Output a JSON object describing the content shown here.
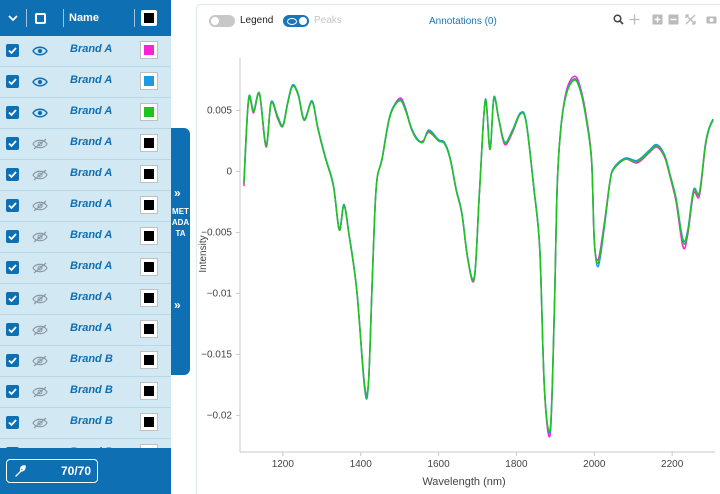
{
  "sidebar": {
    "header": {
      "name_label": "Name"
    },
    "rows": [
      {
        "name": "Brand A",
        "visible": true,
        "color": "#ff21d8"
      },
      {
        "name": "Brand A",
        "visible": true,
        "color": "#1f9ae0"
      },
      {
        "name": "Brand A",
        "visible": true,
        "color": "#1ec51e"
      },
      {
        "name": "Brand A",
        "visible": false,
        "color": "#000000"
      },
      {
        "name": "Brand A",
        "visible": false,
        "color": "#000000"
      },
      {
        "name": "Brand A",
        "visible": false,
        "color": "#000000"
      },
      {
        "name": "Brand A",
        "visible": false,
        "color": "#000000"
      },
      {
        "name": "Brand A",
        "visible": false,
        "color": "#000000"
      },
      {
        "name": "Brand A",
        "visible": false,
        "color": "#000000"
      },
      {
        "name": "Brand A",
        "visible": false,
        "color": "#000000"
      },
      {
        "name": "Brand B",
        "visible": false,
        "color": "#000000"
      },
      {
        "name": "Brand B",
        "visible": false,
        "color": "#000000"
      },
      {
        "name": "Brand B",
        "visible": false,
        "color": "#000000"
      },
      {
        "name": "Brand B",
        "visible": false,
        "color": "#000000"
      }
    ],
    "footer": {
      "count": "70/70"
    },
    "metadata_tab": "METADATA"
  },
  "toolbar": {
    "legend_label": "Legend",
    "peaks_label": "Peaks",
    "annotations_label": "Annotations (0)",
    "modebar": [
      "zoom-icon",
      "pan-icon",
      "zoom-in-icon",
      "zoom-out-icon",
      "autoscale-icon",
      "camera-icon"
    ]
  },
  "chart_data": {
    "type": "line",
    "xlabel": "Wavelength (nm)",
    "ylabel": "Intensity",
    "xlim": [
      1090,
      2310
    ],
    "ylim": [
      -0.023,
      0.0093
    ],
    "xticks": [
      1200,
      1400,
      1600,
      1800,
      2000,
      2200
    ],
    "yticks": [
      0.005,
      0,
      -0.005,
      -0.01,
      -0.015,
      -0.02
    ],
    "ytick_labels": [
      "0.005",
      "0",
      "−0.005",
      "−0.01",
      "−0.015",
      "−0.02"
    ],
    "grid": false,
    "series": [
      {
        "color": "#ff21d8",
        "x": [
          1100,
          1112,
          1125,
          1140,
          1157,
          1170,
          1187,
          1200,
          1212,
          1225,
          1240,
          1255,
          1275,
          1290,
          1310,
          1330,
          1345,
          1357,
          1370,
          1390,
          1410,
          1420,
          1430,
          1440,
          1455,
          1475,
          1500,
          1515,
          1530,
          1545,
          1560,
          1575,
          1600,
          1615,
          1630,
          1645,
          1660,
          1675,
          1692,
          1705,
          1720,
          1732,
          1742,
          1755,
          1770,
          1790,
          1810,
          1825,
          1845,
          1860,
          1872,
          1887,
          1897,
          1905,
          1915,
          1930,
          1950,
          1965,
          1980,
          1993,
          2000,
          2010,
          2025,
          2040,
          2050,
          2080,
          2110,
          2140,
          2160,
          2180,
          2195,
          2210,
          2228,
          2240,
          2255,
          2270,
          2285,
          2295,
          2305
        ],
        "y": [
          -0.0012,
          0.0058,
          0.0048,
          0.0063,
          0.002,
          0.0056,
          0.0043,
          0.0037,
          0.0055,
          0.007,
          0.0062,
          0.0042,
          0.0057,
          0.0035,
          0.001,
          -0.0012,
          -0.0048,
          -0.0028,
          -0.0052,
          -0.0098,
          -0.0175,
          -0.0172,
          -0.0085,
          -0.0012,
          0.001,
          0.0045,
          0.006,
          0.0052,
          0.0035,
          0.0026,
          0.0025,
          0.0032,
          0.0025,
          0.0023,
          0.001,
          -0.0015,
          -0.0035,
          -0.0072,
          -0.0088,
          -0.0018,
          0.0058,
          0.0018,
          0.006,
          0.0042,
          0.0022,
          0.0032,
          0.0047,
          0.004,
          -0.0015,
          -0.0065,
          -0.018,
          -0.0215,
          -0.012,
          -0.001,
          0.0038,
          0.0068,
          0.0078,
          0.0068,
          0.0044,
          0.001,
          -0.0058,
          -0.0072,
          -0.0044,
          -0.0008,
          0.0002,
          0.001,
          0.0007,
          0.0015,
          0.002,
          0.0012,
          -0.0005,
          -0.0025,
          -0.0062,
          -0.0052,
          -0.0018,
          -0.002,
          0.002,
          0.0035,
          0.0042
        ]
      },
      {
        "color": "#1f9ae0",
        "x": [
          1100,
          1112,
          1125,
          1140,
          1157,
          1170,
          1187,
          1200,
          1212,
          1225,
          1240,
          1255,
          1275,
          1290,
          1310,
          1330,
          1345,
          1357,
          1370,
          1390,
          1410,
          1420,
          1430,
          1440,
          1455,
          1475,
          1500,
          1515,
          1530,
          1545,
          1560,
          1575,
          1600,
          1615,
          1630,
          1645,
          1660,
          1675,
          1692,
          1705,
          1720,
          1732,
          1742,
          1755,
          1770,
          1790,
          1810,
          1825,
          1845,
          1860,
          1872,
          1887,
          1897,
          1905,
          1915,
          1930,
          1950,
          1965,
          1980,
          1993,
          2000,
          2010,
          2025,
          2040,
          2050,
          2080,
          2110,
          2140,
          2160,
          2180,
          2195,
          2210,
          2228,
          2240,
          2255,
          2270,
          2285,
          2295,
          2305
        ],
        "y": [
          -0.0008,
          0.006,
          0.005,
          0.0064,
          0.0022,
          0.0057,
          0.0045,
          0.0038,
          0.0056,
          0.0071,
          0.0063,
          0.0043,
          0.0058,
          0.0036,
          0.0011,
          -0.0011,
          -0.0047,
          -0.0027,
          -0.0051,
          -0.0097,
          -0.0178,
          -0.0174,
          -0.0087,
          -0.0013,
          0.0011,
          0.0046,
          0.0059,
          0.0051,
          0.0036,
          0.0027,
          0.0024,
          0.0034,
          0.0026,
          0.0024,
          0.0011,
          -0.0014,
          -0.0034,
          -0.0071,
          -0.0086,
          -0.0017,
          0.0059,
          0.0019,
          0.0061,
          0.0043,
          0.0024,
          0.0034,
          0.0048,
          0.0041,
          -0.0014,
          -0.0063,
          -0.0178,
          -0.0212,
          -0.0118,
          -0.0009,
          0.0039,
          0.0066,
          0.0076,
          0.0066,
          0.0042,
          0.0009,
          -0.0056,
          -0.0078,
          -0.0048,
          -0.0009,
          0.0003,
          0.0011,
          0.0009,
          0.0017,
          0.0022,
          0.0014,
          -0.0003,
          -0.0022,
          -0.0056,
          -0.0048,
          -0.0015,
          -0.0017,
          0.0022,
          0.0036,
          0.0043
        ]
      },
      {
        "color": "#1ec51e",
        "x": [
          1100,
          1112,
          1125,
          1140,
          1157,
          1170,
          1187,
          1200,
          1212,
          1225,
          1240,
          1255,
          1275,
          1290,
          1310,
          1330,
          1345,
          1357,
          1370,
          1390,
          1410,
          1420,
          1430,
          1440,
          1455,
          1475,
          1500,
          1515,
          1530,
          1545,
          1560,
          1575,
          1600,
          1615,
          1630,
          1645,
          1660,
          1675,
          1692,
          1705,
          1720,
          1732,
          1742,
          1755,
          1770,
          1790,
          1810,
          1825,
          1845,
          1860,
          1872,
          1887,
          1897,
          1905,
          1915,
          1930,
          1950,
          1965,
          1980,
          1993,
          2000,
          2010,
          2025,
          2040,
          2050,
          2080,
          2110,
          2140,
          2160,
          2180,
          2195,
          2210,
          2228,
          2240,
          2255,
          2270,
          2285,
          2295,
          2305
        ],
        "y": [
          -0.001,
          0.0059,
          0.0049,
          0.0064,
          0.0021,
          0.0056,
          0.0044,
          0.0037,
          0.0055,
          0.007,
          0.0062,
          0.0042,
          0.0057,
          0.0035,
          0.001,
          -0.0012,
          -0.0048,
          -0.0028,
          -0.0052,
          -0.0098,
          -0.0176,
          -0.0173,
          -0.0086,
          -0.0012,
          0.001,
          0.0045,
          0.0058,
          0.005,
          0.0035,
          0.0026,
          0.0024,
          0.0033,
          0.0025,
          0.0023,
          0.001,
          -0.0015,
          -0.0035,
          -0.0072,
          -0.0087,
          -0.0018,
          0.0058,
          0.0018,
          0.006,
          0.0042,
          0.0023,
          0.0033,
          0.0047,
          0.004,
          -0.0015,
          -0.0064,
          -0.0179,
          -0.021,
          -0.0117,
          -0.001,
          0.0038,
          0.0065,
          0.0075,
          0.0065,
          0.0041,
          0.0008,
          -0.0057,
          -0.0075,
          -0.0046,
          -0.0009,
          0.0002,
          0.001,
          0.0008,
          0.0016,
          0.0021,
          0.0013,
          -0.0004,
          -0.0023,
          -0.0058,
          -0.005,
          -0.0016,
          -0.0018,
          0.0021,
          0.0035,
          0.0042
        ]
      }
    ]
  }
}
